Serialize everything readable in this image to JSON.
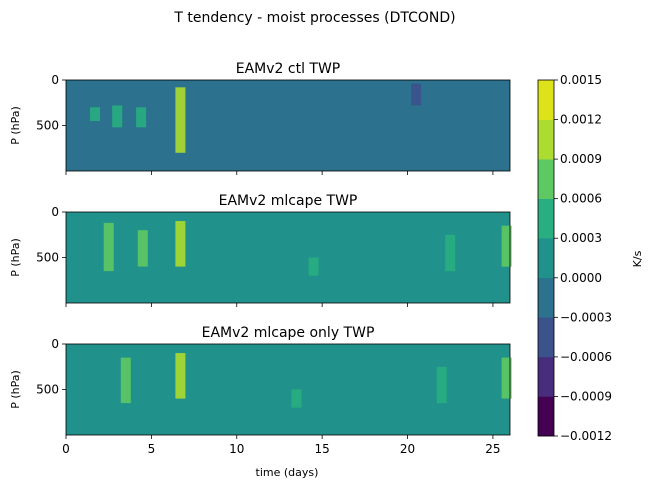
{
  "chart_data": {
    "type": "heatmap",
    "title": "T tendency - moist processes (DTCOND)",
    "xlabel": "time (days)",
    "xlim": [
      0,
      26
    ],
    "x_ticks": [
      0,
      5,
      10,
      15,
      20,
      25
    ],
    "panels": [
      {
        "title": "EAMv2 ctl TWP",
        "ylabel": "P (hPa)",
        "y_ticks": [
          0,
          500
        ],
        "ylim": [
          1000,
          0
        ],
        "background_value": -0.00015,
        "features": [
          {
            "day": 6.7,
            "p_top": 80,
            "p_bottom": 800,
            "value": 0.00105
          },
          {
            "day": 3.0,
            "p_top": 280,
            "p_bottom": 520,
            "value": 0.00045
          },
          {
            "day": 4.4,
            "p_top": 300,
            "p_bottom": 520,
            "value": 0.00045
          },
          {
            "day": 1.7,
            "p_top": 300,
            "p_bottom": 450,
            "value": 0.00045
          },
          {
            "day": 20.5,
            "p_top": 40,
            "p_bottom": 280,
            "value": -0.0005
          }
        ]
      },
      {
        "title": "EAMv2 mlcape TWP",
        "ylabel": "P (hPa)",
        "y_ticks": [
          0,
          500
        ],
        "ylim": [
          1000,
          0
        ],
        "background_value": 0.00015,
        "features": [
          {
            "day": 6.7,
            "p_top": 100,
            "p_bottom": 600,
            "value": 0.0011
          },
          {
            "day": 2.5,
            "p_top": 120,
            "p_bottom": 650,
            "value": 0.0006
          },
          {
            "day": 4.5,
            "p_top": 200,
            "p_bottom": 600,
            "value": 0.0006
          },
          {
            "day": 14.5,
            "p_top": 500,
            "p_bottom": 700,
            "value": 0.0004
          },
          {
            "day": 22.5,
            "p_top": 250,
            "p_bottom": 650,
            "value": 0.0004
          },
          {
            "day": 25.8,
            "p_top": 150,
            "p_bottom": 600,
            "value": 0.0006
          }
        ]
      },
      {
        "title": "EAMv2 mlcape only TWP",
        "ylabel": "P (hPa)",
        "y_ticks": [
          0,
          500
        ],
        "ylim": [
          1000,
          0
        ],
        "background_value": 0.00015,
        "features": [
          {
            "day": 6.7,
            "p_top": 100,
            "p_bottom": 600,
            "value": 0.0011
          },
          {
            "day": 3.5,
            "p_top": 150,
            "p_bottom": 650,
            "value": 0.0006
          },
          {
            "day": 13.5,
            "p_top": 500,
            "p_bottom": 700,
            "value": 0.0004
          },
          {
            "day": 22.0,
            "p_top": 250,
            "p_bottom": 650,
            "value": 0.0004
          },
          {
            "day": 25.8,
            "p_top": 150,
            "p_bottom": 600,
            "value": 0.0006
          }
        ]
      }
    ],
    "colorbar": {
      "label": "K/s",
      "levels": [
        -0.0012,
        -0.0009,
        -0.0006,
        -0.0003,
        0.0,
        0.0003,
        0.0006,
        0.0009,
        0.0012,
        0.0015
      ],
      "tick_labels": [
        "−0.0012",
        "−0.0009",
        "−0.0006",
        "−0.0003",
        "0.0000",
        "0.0003",
        "0.0006",
        "0.0009",
        "0.0012",
        "0.0015"
      ],
      "colors": [
        "#440154",
        "#472d7b",
        "#3b528b",
        "#2c728e",
        "#21918c",
        "#28ae80",
        "#5ec962",
        "#addc30",
        "#dde318"
      ]
    }
  }
}
